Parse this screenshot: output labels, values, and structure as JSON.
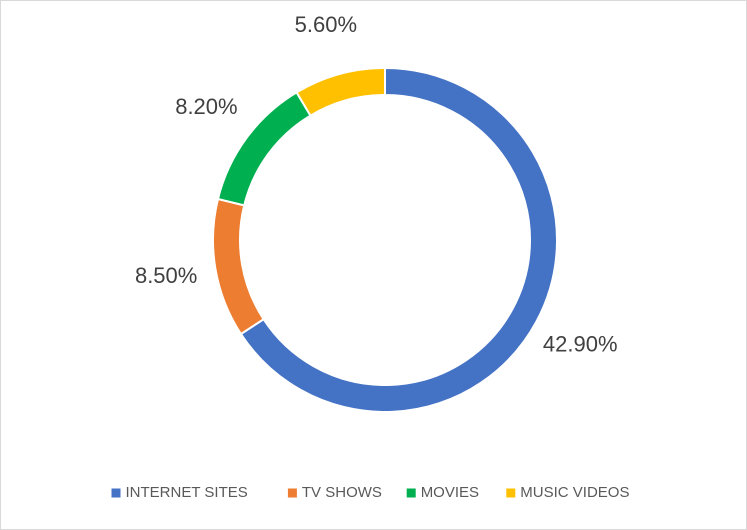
{
  "chart_data": {
    "type": "donut",
    "categories": [
      "INTERNET SITES",
      "TV SHOWS",
      "MOVIES",
      "MUSIC VIDEOS"
    ],
    "values": [
      42.9,
      8.5,
      8.2,
      5.6
    ],
    "value_labels": [
      "42.90%",
      "8.50%",
      "8.20%",
      "5.60%"
    ],
    "colors": [
      "#4472c4",
      "#ed7d31",
      "#00b050",
      "#ffc000"
    ],
    "legend": "bottom"
  }
}
